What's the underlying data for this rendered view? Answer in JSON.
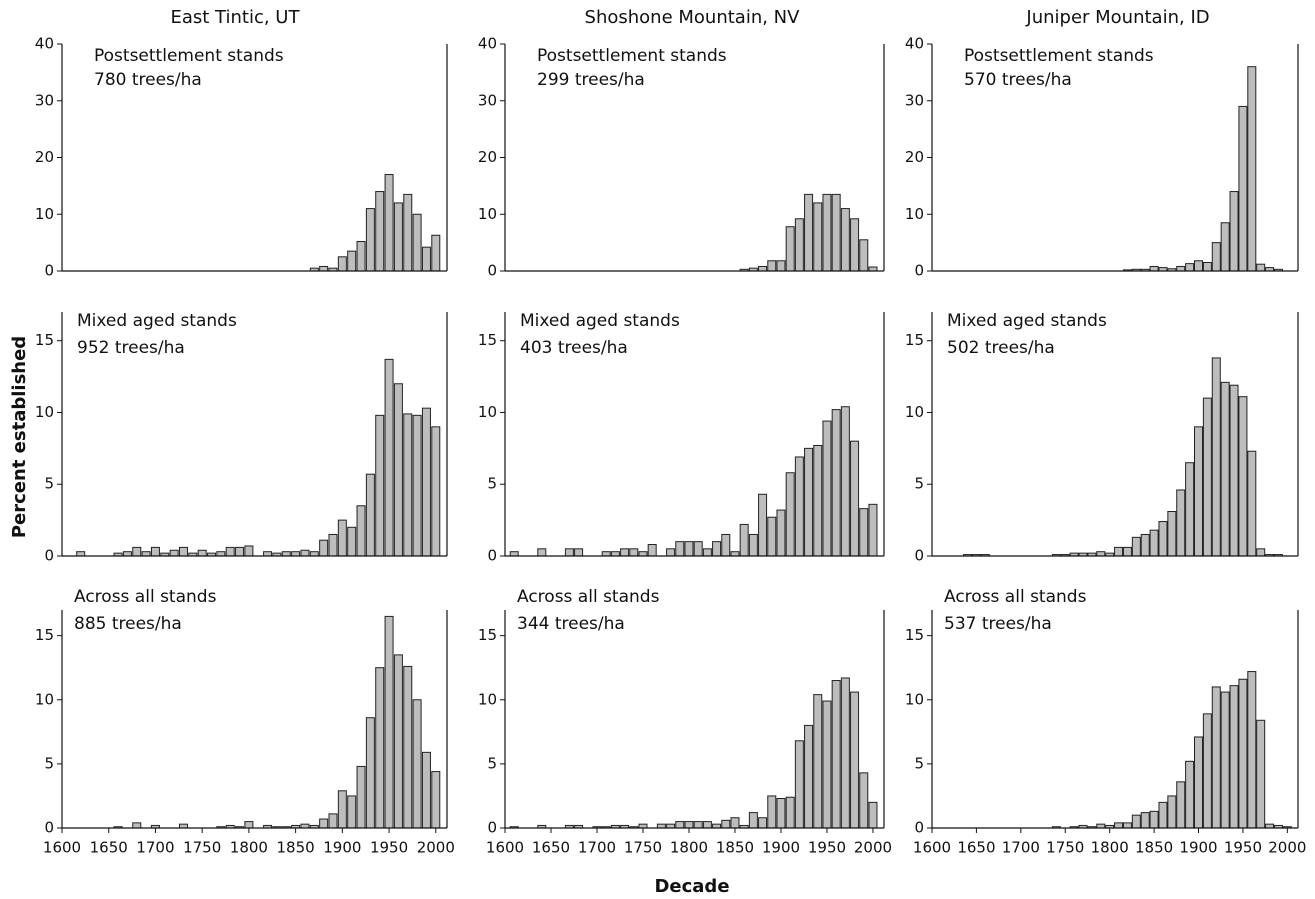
{
  "figure": {
    "column_titles": [
      "East Tintic, UT",
      "Shoshone Mountain, NV",
      "Juniper Mountain, ID"
    ],
    "xlabel": "Decade",
    "ylabel": "Percent established"
  },
  "chart_data": [
    {
      "type": "bar",
      "annotation": [
        "Postsettlement stands",
        "780 trees/ha"
      ],
      "color": "#bdbdbd",
      "xlim": [
        1600,
        2012
      ],
      "ylim": [
        0,
        40
      ],
      "yticks": [
        0,
        10,
        20,
        30,
        40
      ],
      "x": [
        1600,
        1610,
        1620,
        1630,
        1640,
        1650,
        1660,
        1670,
        1680,
        1690,
        1700,
        1710,
        1720,
        1730,
        1740,
        1750,
        1760,
        1770,
        1780,
        1790,
        1800,
        1810,
        1820,
        1830,
        1840,
        1850,
        1860,
        1870,
        1880,
        1890,
        1900,
        1910,
        1920,
        1930,
        1940,
        1950,
        1960,
        1970,
        1980,
        1990,
        2000
      ],
      "values": [
        0,
        0,
        0,
        0,
        0,
        0,
        0,
        0,
        0,
        0,
        0,
        0,
        0,
        0,
        0,
        0,
        0,
        0,
        0,
        0,
        0,
        0,
        0,
        0,
        0,
        0,
        0,
        0.5,
        0.8,
        0.5,
        2.5,
        3.5,
        5.2,
        11,
        14,
        17,
        12,
        13.5,
        10,
        4.2,
        6.3
      ]
    },
    {
      "type": "bar",
      "annotation": [
        "Postsettlement stands",
        "299 trees/ha"
      ],
      "color": "#bdbdbd",
      "xlim": [
        1600,
        2012
      ],
      "ylim": [
        0,
        40
      ],
      "yticks": [
        0,
        10,
        20,
        30,
        40
      ],
      "x": [
        1600,
        1610,
        1620,
        1630,
        1640,
        1650,
        1660,
        1670,
        1680,
        1690,
        1700,
        1710,
        1720,
        1730,
        1740,
        1750,
        1760,
        1770,
        1780,
        1790,
        1800,
        1810,
        1820,
        1830,
        1840,
        1850,
        1860,
        1870,
        1880,
        1890,
        1900,
        1910,
        1920,
        1930,
        1940,
        1950,
        1960,
        1970,
        1980,
        1990,
        2000
      ],
      "values": [
        0,
        0,
        0,
        0,
        0,
        0,
        0,
        0,
        0,
        0,
        0,
        0,
        0,
        0,
        0,
        0,
        0,
        0,
        0,
        0,
        0,
        0,
        0,
        0,
        0,
        0,
        0.3,
        0.5,
        0.8,
        1.8,
        1.8,
        7.8,
        9.2,
        13.5,
        12,
        13.5,
        13.5,
        11,
        9.2,
        5.5,
        0.7
      ]
    },
    {
      "type": "bar",
      "annotation": [
        "Postsettlement stands",
        "570 trees/ha"
      ],
      "color": "#bdbdbd",
      "xlim": [
        1600,
        2012
      ],
      "ylim": [
        0,
        40
      ],
      "yticks": [
        0,
        10,
        20,
        30,
        40
      ],
      "x": [
        1600,
        1610,
        1620,
        1630,
        1640,
        1650,
        1660,
        1670,
        1680,
        1690,
        1700,
        1710,
        1720,
        1730,
        1740,
        1750,
        1760,
        1770,
        1780,
        1790,
        1800,
        1810,
        1820,
        1830,
        1840,
        1850,
        1860,
        1870,
        1880,
        1890,
        1900,
        1910,
        1920,
        1930,
        1940,
        1950,
        1960,
        1970,
        1980,
        1990,
        2000
      ],
      "values": [
        0,
        0,
        0,
        0,
        0,
        0,
        0,
        0,
        0,
        0,
        0,
        0,
        0,
        0,
        0,
        0,
        0,
        0,
        0,
        0,
        0,
        0,
        0.2,
        0.3,
        0.3,
        0.8,
        0.6,
        0.4,
        0.8,
        1.3,
        1.8,
        1.5,
        5,
        8.5,
        14,
        29,
        36,
        1.2,
        0.6,
        0.3,
        0
      ]
    },
    {
      "type": "bar",
      "annotation": [
        "Mixed aged stands",
        "952 trees/ha"
      ],
      "color": "#bdbdbd",
      "xlim": [
        1600,
        2012
      ],
      "ylim": [
        0,
        17
      ],
      "yticks": [
        0,
        5,
        10,
        15
      ],
      "x": [
        1600,
        1610,
        1620,
        1630,
        1640,
        1650,
        1660,
        1670,
        1680,
        1690,
        1700,
        1710,
        1720,
        1730,
        1740,
        1750,
        1760,
        1770,
        1780,
        1790,
        1800,
        1810,
        1820,
        1830,
        1840,
        1850,
        1860,
        1870,
        1880,
        1890,
        1900,
        1910,
        1920,
        1930,
        1940,
        1950,
        1960,
        1970,
        1980,
        1990,
        2000
      ],
      "values": [
        0,
        0,
        0.3,
        0,
        0,
        0,
        0.2,
        0.3,
        0.6,
        0.3,
        0.6,
        0.2,
        0.4,
        0.6,
        0.2,
        0.4,
        0.2,
        0.3,
        0.6,
        0.6,
        0.7,
        0,
        0.3,
        0.2,
        0.3,
        0.3,
        0.4,
        0.3,
        1.1,
        1.5,
        2.5,
        2.0,
        3.5,
        5.7,
        9.8,
        13.7,
        12,
        9.9,
        9.8,
        10.3,
        9.0
      ]
    },
    {
      "type": "bar",
      "annotation": [
        "Mixed aged stands",
        "403 trees/ha"
      ],
      "color": "#bdbdbd",
      "xlim": [
        1600,
        2012
      ],
      "ylim": [
        0,
        17
      ],
      "yticks": [
        0,
        5,
        10,
        15
      ],
      "x": [
        1600,
        1610,
        1620,
        1630,
        1640,
        1650,
        1660,
        1670,
        1680,
        1690,
        1700,
        1710,
        1720,
        1730,
        1740,
        1750,
        1760,
        1770,
        1780,
        1790,
        1800,
        1810,
        1820,
        1830,
        1840,
        1850,
        1860,
        1870,
        1880,
        1890,
        1900,
        1910,
        1920,
        1930,
        1940,
        1950,
        1960,
        1970,
        1980,
        1990,
        2000
      ],
      "values": [
        0,
        0.3,
        0,
        0,
        0.5,
        0,
        0,
        0.5,
        0.5,
        0,
        0,
        0.3,
        0.3,
        0.5,
        0.5,
        0.3,
        0.8,
        0,
        0.5,
        1.0,
        1.0,
        1.0,
        0.5,
        1.0,
        1.5,
        0.3,
        2.2,
        1.5,
        4.3,
        2.7,
        3.2,
        5.8,
        6.9,
        7.5,
        7.7,
        9.4,
        10.2,
        10.4,
        8,
        3.3,
        3.6
      ]
    },
    {
      "type": "bar",
      "annotation": [
        "Mixed aged stands",
        "502 trees/ha"
      ],
      "color": "#bdbdbd",
      "xlim": [
        1600,
        2012
      ],
      "ylim": [
        0,
        17
      ],
      "yticks": [
        0,
        5,
        10,
        15
      ],
      "x": [
        1600,
        1610,
        1620,
        1630,
        1640,
        1650,
        1660,
        1670,
        1680,
        1690,
        1700,
        1710,
        1720,
        1730,
        1740,
        1750,
        1760,
        1770,
        1780,
        1790,
        1800,
        1810,
        1820,
        1830,
        1840,
        1850,
        1860,
        1870,
        1880,
        1890,
        1900,
        1910,
        1920,
        1930,
        1940,
        1950,
        1960,
        1970,
        1980,
        1990,
        2000
      ],
      "values": [
        0,
        0,
        0,
        0,
        0.1,
        0.1,
        0.1,
        0,
        0,
        0,
        0,
        0,
        0,
        0,
        0.1,
        0.1,
        0.2,
        0.2,
        0.2,
        0.3,
        0.2,
        0.6,
        0.6,
        1.3,
        1.5,
        1.8,
        2.4,
        3.1,
        4.6,
        6.5,
        9.0,
        11,
        13.8,
        12.1,
        11.9,
        11.1,
        7.3,
        0.5,
        0.1,
        0.1,
        0
      ]
    },
    {
      "type": "bar",
      "annotation": [
        "Across all stands",
        "885 trees/ha"
      ],
      "color": "#bdbdbd",
      "xlim": [
        1600,
        2012
      ],
      "ylim": [
        0,
        17
      ],
      "yticks": [
        0,
        5,
        10,
        15
      ],
      "xticks": [
        1600,
        1650,
        1700,
        1750,
        1800,
        1850,
        1900,
        1950,
        2000
      ],
      "x": [
        1600,
        1610,
        1620,
        1630,
        1640,
        1650,
        1660,
        1670,
        1680,
        1690,
        1700,
        1710,
        1720,
        1730,
        1740,
        1750,
        1760,
        1770,
        1780,
        1790,
        1800,
        1810,
        1820,
        1830,
        1840,
        1850,
        1860,
        1870,
        1880,
        1890,
        1900,
        1910,
        1920,
        1930,
        1940,
        1950,
        1960,
        1970,
        1980,
        1990,
        2000
      ],
      "values": [
        0,
        0,
        0,
        0,
        0,
        0,
        0.1,
        0,
        0.4,
        0,
        0.2,
        0,
        0,
        0.3,
        0,
        0,
        0,
        0.1,
        0.2,
        0.1,
        0.5,
        0,
        0.2,
        0.1,
        0.1,
        0.2,
        0.3,
        0.2,
        0.7,
        1.1,
        2.9,
        2.5,
        4.8,
        8.6,
        12.5,
        16.5,
        13.5,
        12.6,
        10,
        5.9,
        4.4
      ]
    },
    {
      "type": "bar",
      "annotation": [
        "Across all stands",
        "344 trees/ha"
      ],
      "color": "#bdbdbd",
      "xlim": [
        1600,
        2012
      ],
      "ylim": [
        0,
        17
      ],
      "yticks": [
        0,
        5,
        10,
        15
      ],
      "xticks": [
        1600,
        1650,
        1700,
        1750,
        1800,
        1850,
        1900,
        1950,
        2000
      ],
      "x": [
        1600,
        1610,
        1620,
        1630,
        1640,
        1650,
        1660,
        1670,
        1680,
        1690,
        1700,
        1710,
        1720,
        1730,
        1740,
        1750,
        1760,
        1770,
        1780,
        1790,
        1800,
        1810,
        1820,
        1830,
        1840,
        1850,
        1860,
        1870,
        1880,
        1890,
        1900,
        1910,
        1920,
        1930,
        1940,
        1950,
        1960,
        1970,
        1980,
        1990,
        2000
      ],
      "values": [
        0,
        0.1,
        0,
        0,
        0.2,
        0,
        0,
        0.2,
        0.2,
        0,
        0.1,
        0.1,
        0.2,
        0.2,
        0.1,
        0.3,
        0,
        0.3,
        0.3,
        0.5,
        0.5,
        0.5,
        0.5,
        0.3,
        0.6,
        0.8,
        0.2,
        1.2,
        0.8,
        2.5,
        2.3,
        2.4,
        6.8,
        8,
        10.4,
        9.9,
        11.5,
        11.7,
        10.6,
        4.3,
        2.0
      ]
    },
    {
      "type": "bar",
      "annotation": [
        "Across all stands",
        "537 trees/ha"
      ],
      "color": "#bdbdbd",
      "xlim": [
        1600,
        2012
      ],
      "ylim": [
        0,
        17
      ],
      "yticks": [
        0,
        5,
        10,
        15
      ],
      "xticks": [
        1600,
        1650,
        1700,
        1750,
        1800,
        1850,
        1900,
        1950,
        2000
      ],
      "x": [
        1600,
        1610,
        1620,
        1630,
        1640,
        1650,
        1660,
        1670,
        1680,
        1690,
        1700,
        1710,
        1720,
        1730,
        1740,
        1750,
        1760,
        1770,
        1780,
        1790,
        1800,
        1810,
        1820,
        1830,
        1840,
        1850,
        1860,
        1870,
        1880,
        1890,
        1900,
        1910,
        1920,
        1930,
        1940,
        1950,
        1960,
        1970,
        1980,
        1990,
        2000
      ],
      "values": [
        0,
        0,
        0,
        0,
        0,
        0,
        0,
        0,
        0,
        0,
        0,
        0,
        0,
        0,
        0.1,
        0,
        0.1,
        0.2,
        0.1,
        0.3,
        0.2,
        0.4,
        0.4,
        1.0,
        1.2,
        1.3,
        2.0,
        2.5,
        3.6,
        5.2,
        7.1,
        8.9,
        11,
        10.6,
        11.1,
        11.6,
        12.2,
        8.4,
        0.3,
        0.2,
        0.1
      ]
    }
  ]
}
